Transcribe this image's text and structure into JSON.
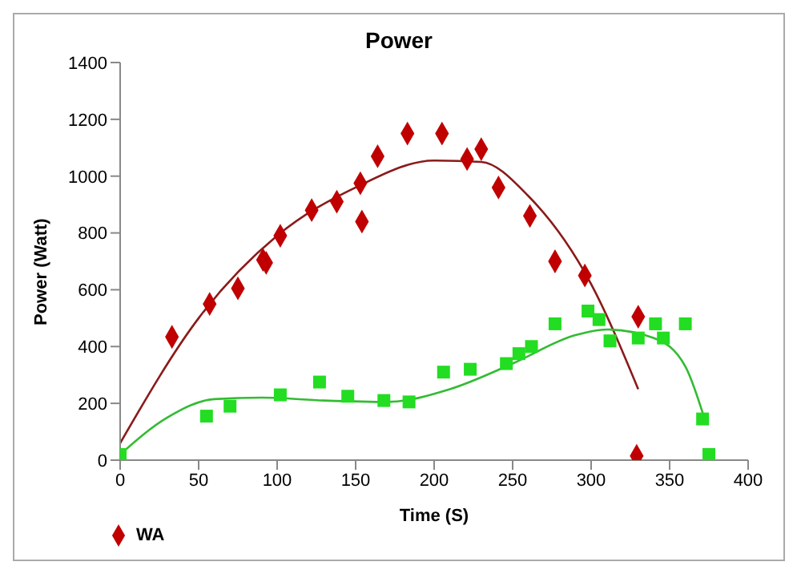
{
  "chart_data": {
    "type": "scatter",
    "title": "Power",
    "xlabel": "Time (S)",
    "ylabel": "Power (Watt)",
    "xlim": [
      0,
      400
    ],
    "xticks": [
      0,
      50,
      100,
      150,
      200,
      250,
      300,
      350,
      400
    ],
    "ylim": [
      0,
      1400
    ],
    "yticks": [
      0,
      200,
      400,
      600,
      800,
      1000,
      1200,
      1400
    ],
    "grid": false,
    "legend": "bottom",
    "series": [
      {
        "name": "WA",
        "marker": "diamond",
        "color": "#c00000",
        "x": [
          33,
          57,
          75,
          91,
          93,
          102,
          122,
          138,
          153,
          154,
          164,
          183,
          205,
          221,
          230,
          241,
          261,
          277,
          296,
          329,
          330
        ],
        "values": [
          434,
          550,
          605,
          705,
          695,
          790,
          880,
          910,
          975,
          840,
          1070,
          1150,
          1150,
          1060,
          1095,
          960,
          860,
          700,
          650,
          15,
          505
        ]
      },
      {
        "marker": "square",
        "color": "#22dd22",
        "x": [
          0,
          55,
          70,
          102,
          127,
          145,
          168,
          184,
          206,
          223,
          246,
          254,
          262,
          277,
          298,
          305,
          312,
          330,
          341,
          346,
          360,
          371,
          375
        ],
        "values": [
          20,
          155,
          190,
          230,
          275,
          225,
          210,
          205,
          310,
          320,
          340,
          375,
          400,
          480,
          525,
          495,
          420,
          430,
          480,
          430,
          480,
          145,
          20
        ]
      },
      {
        "type": "line",
        "marker": "none",
        "color": "#8b1a1a",
        "x": [
          0,
          50,
          100,
          150,
          200,
          230,
          260,
          300,
          330
        ],
        "values": [
          60,
          500,
          790,
          960,
          1055,
          1050,
          930,
          620,
          250
        ]
      },
      {
        "type": "line",
        "marker": "none",
        "color": "#33bb33",
        "x": [
          0,
          30,
          60,
          90,
          130,
          170,
          210,
          250,
          290,
          310,
          340,
          360,
          372
        ],
        "values": [
          20,
          150,
          215,
          220,
          210,
          205,
          250,
          340,
          440,
          460,
          430,
          330,
          150
        ]
      }
    ]
  }
}
